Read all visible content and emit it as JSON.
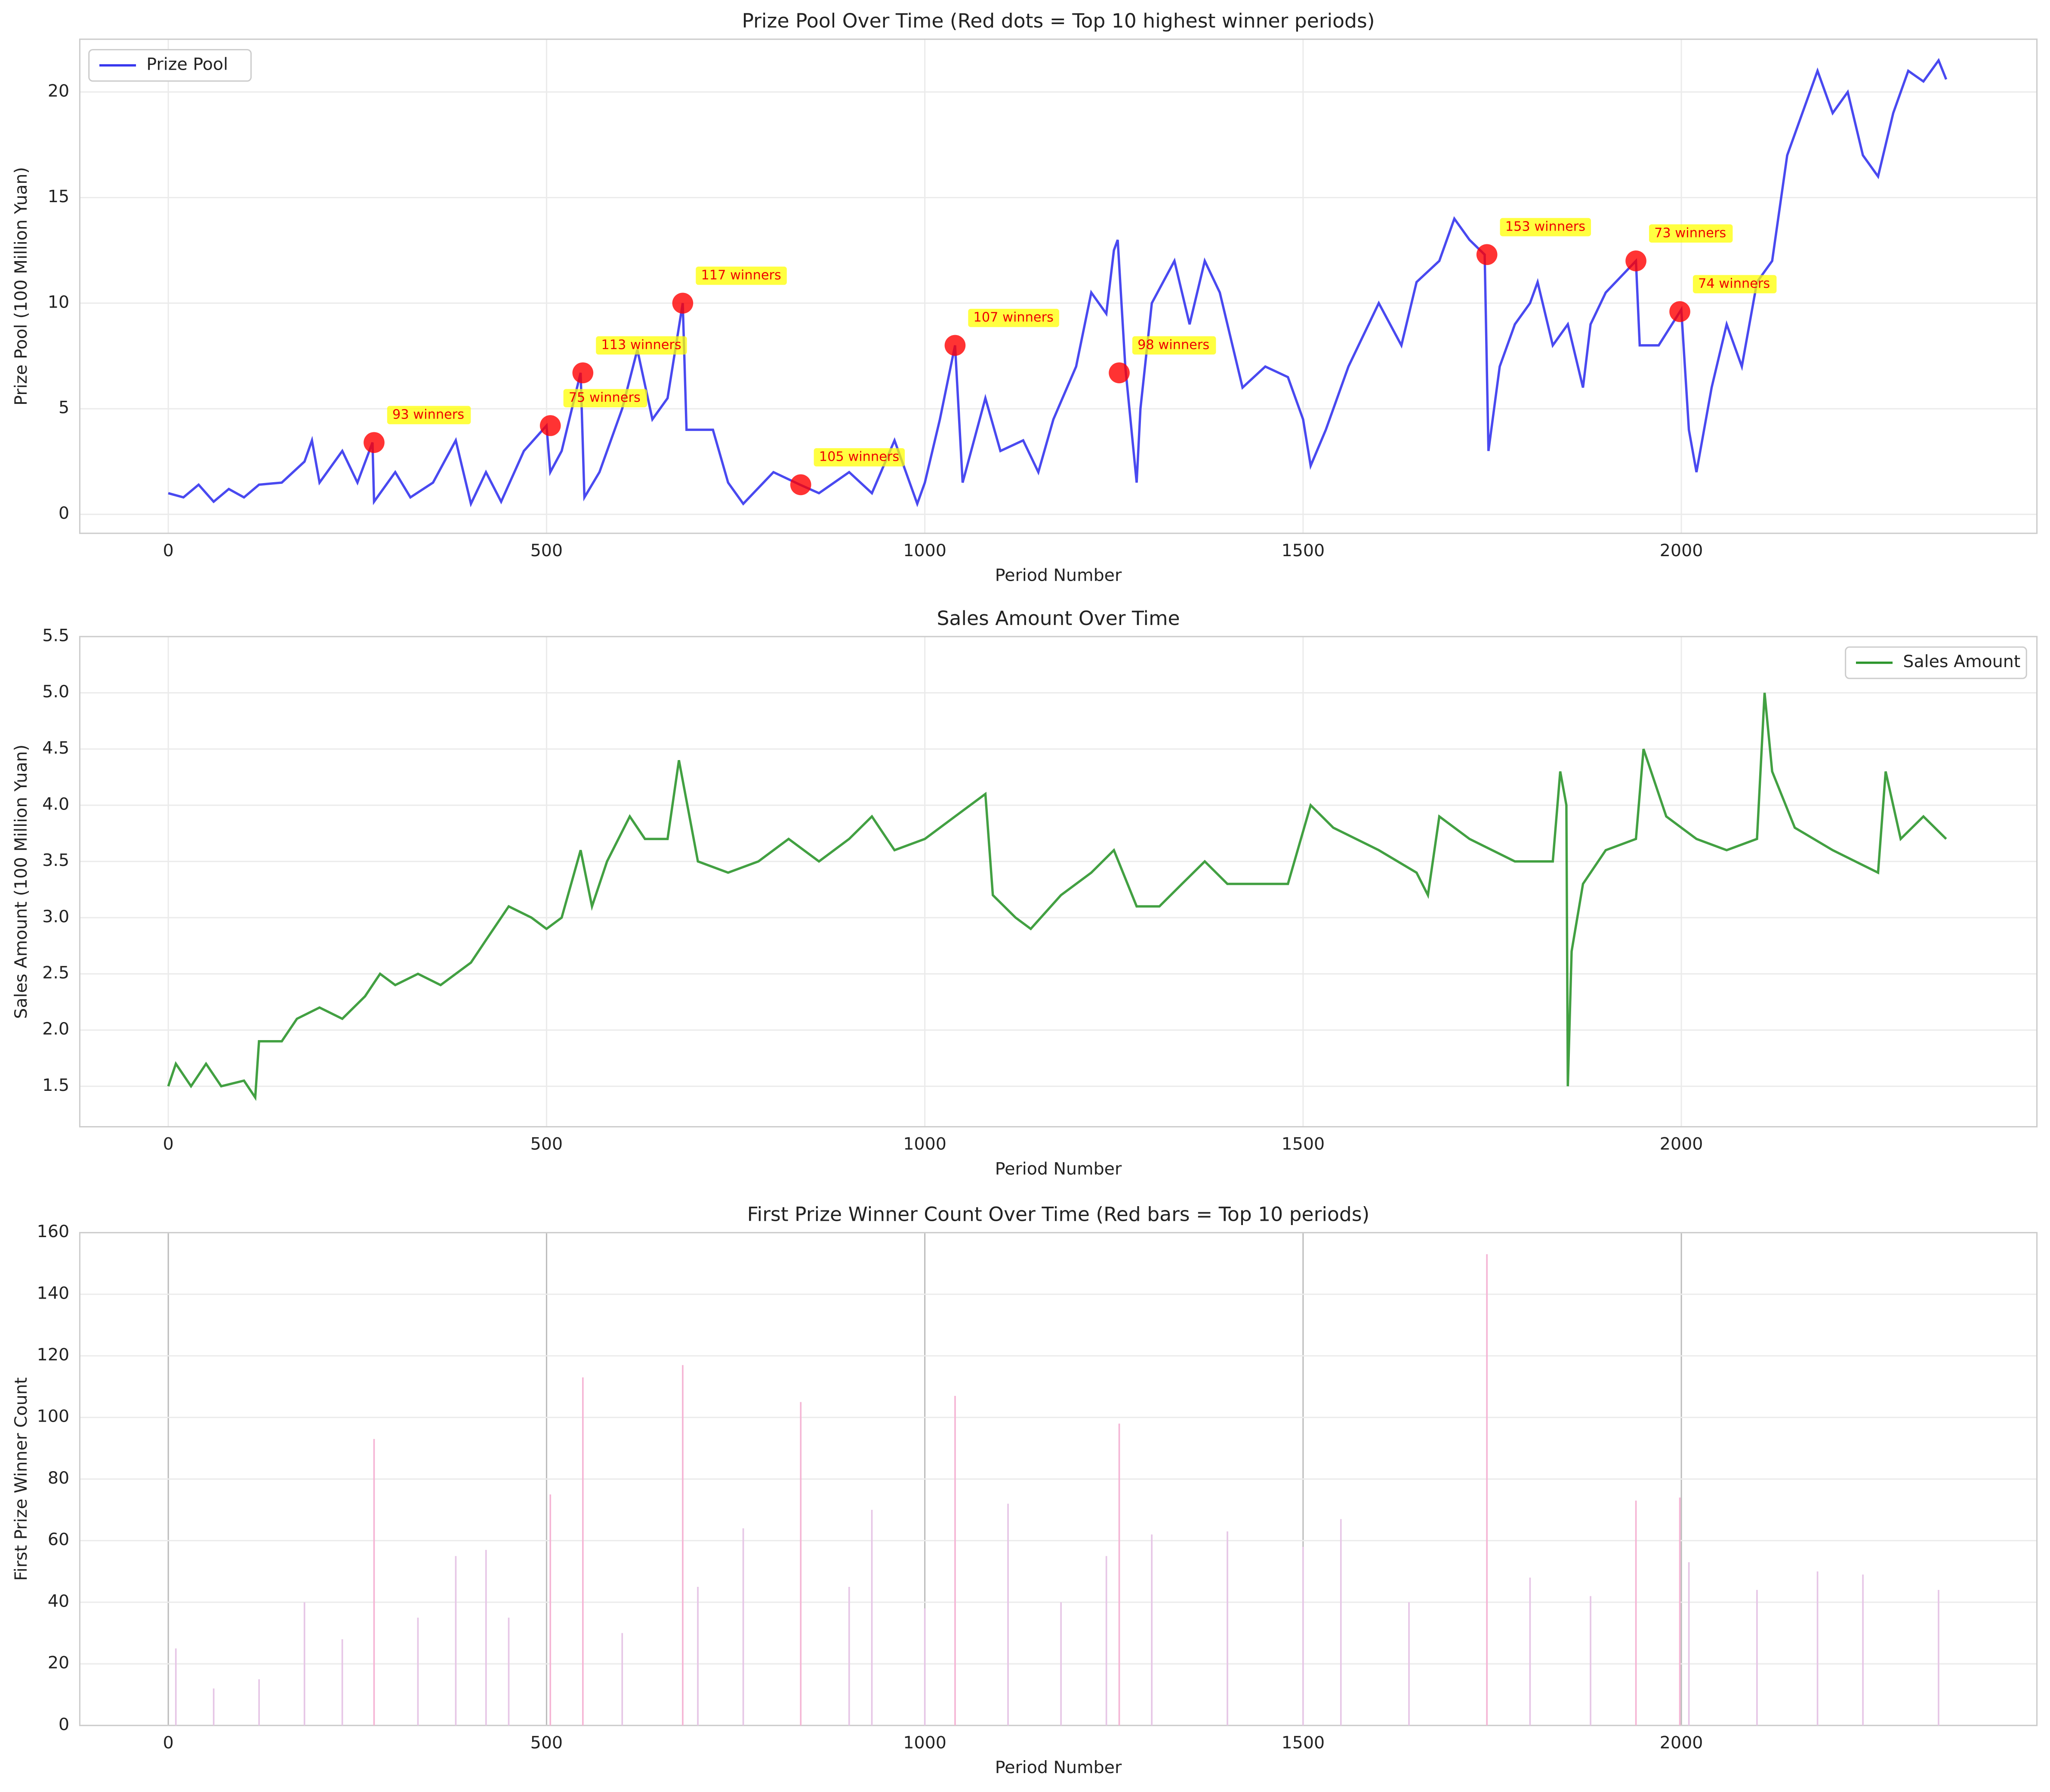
{
  "chart_data": [
    {
      "type": "line",
      "title": "Prize Pool Over Time (Red dots = Top 10 highest winner periods)",
      "x_label": "Period Number",
      "y_label": "Prize Pool (100 Million Yuan)",
      "xlim": [
        -117,
        2470
      ],
      "ylim": [
        -0.9,
        22.5
      ],
      "xticks": [
        0,
        500,
        1000,
        1500,
        2000
      ],
      "yticks": [
        0,
        5,
        10,
        15,
        20
      ],
      "grid": true,
      "legend": "upper left",
      "series": [
        {
          "name": "Prize Pool",
          "color": "#3535ee",
          "x": [
            0,
            20,
            40,
            60,
            80,
            100,
            120,
            150,
            180,
            190,
            200,
            230,
            250,
            270,
            272,
            300,
            320,
            350,
            380,
            400,
            420,
            440,
            470,
            500,
            505,
            520,
            545,
            550,
            570,
            600,
            620,
            640,
            660,
            680,
            685,
            720,
            740,
            760,
            800,
            835,
            860,
            900,
            930,
            960,
            990,
            1000,
            1020,
            1040,
            1050,
            1080,
            1100,
            1130,
            1150,
            1170,
            1200,
            1220,
            1240,
            1250,
            1255,
            1265,
            1280,
            1285,
            1300,
            1330,
            1350,
            1370,
            1390,
            1420,
            1450,
            1480,
            1500,
            1510,
            1530,
            1560,
            1600,
            1630,
            1650,
            1680,
            1700,
            1720,
            1740,
            1745,
            1760,
            1780,
            1800,
            1810,
            1830,
            1850,
            1870,
            1880,
            1900,
            1940,
            1945,
            1970,
            2000,
            2010,
            2020,
            2040,
            2060,
            2080,
            2100,
            2120,
            2140,
            2160,
            2180,
            2200,
            2220,
            2240,
            2260,
            2280,
            2300,
            2320,
            2340,
            2350
          ],
          "values": [
            1,
            0.8,
            1.4,
            0.6,
            1.2,
            0.8,
            1.4,
            1.5,
            2.5,
            3.5,
            1.5,
            3,
            1.5,
            3.4,
            0.6,
            2,
            0.8,
            1.5,
            3.5,
            0.5,
            2,
            0.6,
            3,
            4.2,
            2,
            3,
            6.7,
            0.8,
            2,
            5,
            7.8,
            4.5,
            5.5,
            10,
            4,
            4,
            1.5,
            0.5,
            2,
            1.4,
            1,
            2,
            1,
            3.5,
            0.5,
            1.5,
            4.5,
            8,
            1.5,
            5.5,
            3,
            3.5,
            2,
            4.5,
            7,
            10.5,
            9.5,
            12.5,
            13,
            7,
            1.5,
            5,
            10,
            12,
            9,
            12,
            10.5,
            6,
            7,
            6.5,
            4.5,
            2.3,
            4,
            7,
            10,
            8,
            11,
            12,
            14,
            13,
            12.3,
            3,
            7,
            9,
            10,
            11,
            8,
            9,
            6,
            9,
            10.5,
            12,
            8,
            8,
            9.7,
            4,
            2,
            6,
            9,
            7,
            11,
            12,
            17,
            19,
            21,
            19,
            20,
            17,
            16,
            19,
            21,
            20.5,
            21.5,
            20.6
          ]
        }
      ],
      "highlights": {
        "color": "#ff0000",
        "box_color": "#ffff00",
        "x": [
          272,
          505,
          548,
          680,
          836,
          1040,
          1257,
          1743,
          1940,
          1998
        ],
        "values": [
          3.4,
          4.2,
          6.7,
          10,
          1.4,
          8,
          6.7,
          12.3,
          12,
          9.6
        ],
        "labels": [
          "93 winners",
          "75 winners",
          "113 winners",
          "117 winners",
          "105 winners",
          "107 winners",
          "98 winners",
          "153 winners",
          "73 winners",
          "74 winners"
        ]
      }
    },
    {
      "type": "line",
      "title": "Sales Amount Over Time",
      "x_label": "Period Number",
      "y_label": "Sales Amount (100 Million Yuan)",
      "xlim": [
        -117,
        2470
      ],
      "ylim": [
        1.14,
        5.5
      ],
      "xticks": [
        0,
        500,
        1000,
        1500,
        2000
      ],
      "yticks": [
        1.5,
        2.0,
        2.5,
        3.0,
        3.5,
        4.0,
        4.5,
        5.0,
        5.5
      ],
      "ytick_labels": [
        "1.5",
        "2.0",
        "2.5",
        "3.0",
        "3.5",
        "4.0",
        "4.5",
        "5.0",
        "5.5"
      ],
      "grid": true,
      "legend": "upper right",
      "series": [
        {
          "name": "Sales Amount",
          "color": "#2e962e",
          "x": [
            0,
            10,
            30,
            50,
            70,
            100,
            115,
            120,
            150,
            170,
            200,
            230,
            260,
            280,
            300,
            330,
            360,
            400,
            420,
            450,
            480,
            500,
            520,
            545,
            560,
            580,
            610,
            630,
            660,
            675,
            700,
            740,
            780,
            820,
            860,
            900,
            930,
            960,
            1000,
            1040,
            1080,
            1090,
            1120,
            1140,
            1180,
            1220,
            1250,
            1280,
            1310,
            1340,
            1370,
            1400,
            1440,
            1480,
            1510,
            1540,
            1600,
            1650,
            1665,
            1680,
            1720,
            1780,
            1830,
            1840,
            1848,
            1850,
            1855,
            1870,
            1900,
            1940,
            1950,
            1980,
            2020,
            2060,
            2100,
            2110,
            2120,
            2150,
            2200,
            2230,
            2260,
            2270,
            2290,
            2320,
            2350
          ],
          "values": [
            1.5,
            1.7,
            1.5,
            1.7,
            1.5,
            1.55,
            1.4,
            1.9,
            1.9,
            2.1,
            2.2,
            2.1,
            2.3,
            2.5,
            2.4,
            2.5,
            2.4,
            2.6,
            2.8,
            3.1,
            3.0,
            2.9,
            3.0,
            3.6,
            3.1,
            3.5,
            3.9,
            3.7,
            3.7,
            4.4,
            3.5,
            3.4,
            3.5,
            3.7,
            3.5,
            3.7,
            3.9,
            3.6,
            3.7,
            3.9,
            4.1,
            3.2,
            3.0,
            2.9,
            3.2,
            3.4,
            3.6,
            3.1,
            3.1,
            3.3,
            3.5,
            3.3,
            3.3,
            3.3,
            4.0,
            3.8,
            3.6,
            3.4,
            3.2,
            3.9,
            3.7,
            3.5,
            3.5,
            4.3,
            4.0,
            1.5,
            2.7,
            3.3,
            3.6,
            3.7,
            4.5,
            3.9,
            3.7,
            3.6,
            3.7,
            5.0,
            4.3,
            3.8,
            3.6,
            3.5,
            3.4,
            4.3,
            3.7,
            3.9,
            3.7
          ]
        }
      ]
    },
    {
      "type": "bar",
      "title": "First Prize Winner Count Over Time (Red bars = Top 10 periods)",
      "x_label": "Period Number",
      "y_label": "First Prize Winner Count",
      "xlim": [
        -117,
        2470
      ],
      "ylim": [
        0,
        160
      ],
      "xticks": [
        0,
        500,
        1000,
        1500,
        2000
      ],
      "yticks": [
        0,
        20,
        40,
        60,
        80,
        100,
        120,
        140,
        160
      ],
      "grid": true,
      "color": "#e6c6e6",
      "highlight_color": "#f5b5d5",
      "x": [
        10,
        60,
        120,
        180,
        230,
        272,
        330,
        380,
        420,
        450,
        505,
        548,
        600,
        680,
        700,
        760,
        836,
        900,
        930,
        1000,
        1040,
        1110,
        1180,
        1240,
        1257,
        1300,
        1400,
        1500,
        1550,
        1640,
        1743,
        1800,
        1880,
        1940,
        1998,
        2010,
        2100,
        2180,
        2240,
        2340
      ],
      "values": [
        25,
        12,
        15,
        40,
        28,
        93,
        35,
        55,
        57,
        35,
        75,
        113,
        30,
        117,
        45,
        64,
        105,
        45,
        70,
        38,
        107,
        72,
        40,
        55,
        98,
        62,
        63,
        58,
        67,
        40,
        153,
        48,
        42,
        73,
        74,
        53,
        44,
        50,
        49,
        44
      ],
      "highlight": [
        false,
        false,
        false,
        false,
        false,
        true,
        false,
        false,
        false,
        false,
        true,
        true,
        false,
        true,
        false,
        false,
        true,
        false,
        false,
        false,
        true,
        false,
        false,
        false,
        true,
        false,
        false,
        false,
        false,
        false,
        true,
        false,
        false,
        true,
        true,
        false,
        false,
        false,
        false,
        false
      ]
    }
  ]
}
